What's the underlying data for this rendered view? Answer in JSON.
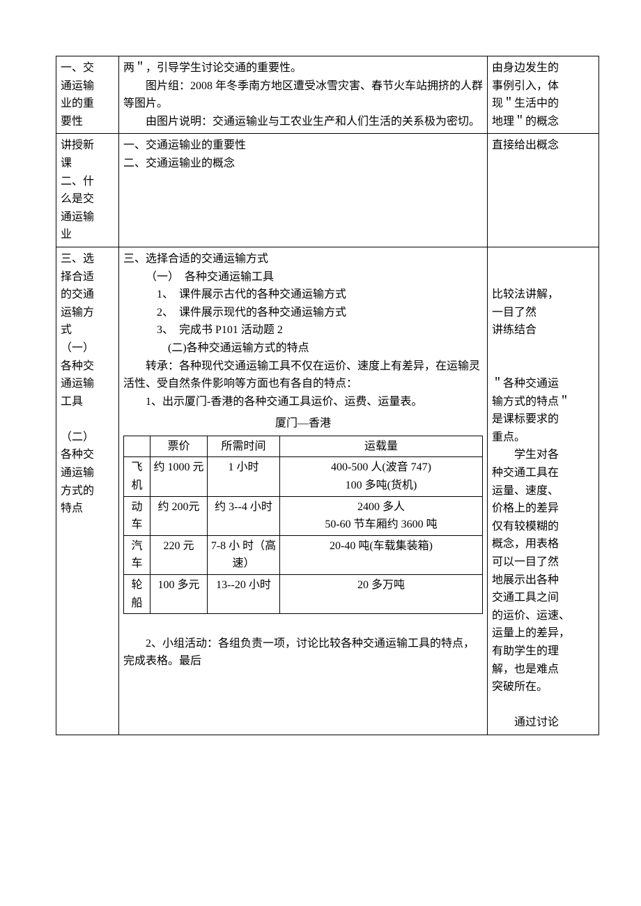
{
  "rows": [
    {
      "left": [
        "一、交",
        "通运输",
        "业的重",
        "要性"
      ],
      "mid": [
        {
          "cls": "",
          "text": "两＂，引导学生讨论交通的重要性。"
        },
        {
          "cls": "indent1",
          "text": "图片组：2008 年冬季南方地区遭受冰雪灾害、春节火车站拥挤的人群等图片。"
        },
        {
          "cls": "indent1",
          "text": "由图片说明：交通运输业与工农业生产和人们生活的关系极为密切。"
        }
      ],
      "right": [
        "",
        "由身边发生的",
        "事例引入，体",
        "现＂生活中的",
        "地理＂的概念"
      ]
    },
    {
      "left": [
        "讲授新",
        "课",
        "二、什",
        "么是交",
        "通运输",
        "业"
      ],
      "mid": [
        {
          "cls": "",
          "text": "一、交通运输业的重要性"
        },
        {
          "cls": "",
          "text": "二、交通运输业的概念"
        }
      ],
      "right": [
        "",
        "直接给出概念"
      ]
    }
  ],
  "row3": {
    "left": [
      "三、选",
      "择合适",
      "的交通",
      "运输方",
      "式",
      "（一）",
      "各种交",
      "通运输",
      "工具",
      "",
      "（二）",
      "各种交",
      "通运输",
      "方式的",
      "特点"
    ],
    "mid_top": [
      {
        "cls": "",
        "text": "三、选择合适的交通运输方式"
      },
      {
        "cls": "indent1",
        "text": "（一）　各种交通运输工具"
      },
      {
        "cls": "indent2",
        "text": "1、　课件展示古代的各种交通运输方式"
      },
      {
        "cls": "indent2",
        "text": "2、　课件展示现代的各种交通运输方式"
      },
      {
        "cls": "indent2",
        "text": "3、　完成书 P101 活动题 2"
      },
      {
        "cls": "indent3",
        "text": "(二)各种交通运输方式的特点"
      },
      {
        "cls": "indent1",
        "text": "转承：各种现代交通运输工具不仅在运价、速度上有差异，在运输灵活性、受自然条件影响等方面也有各自的特点："
      },
      {
        "cls": "indent1",
        "text": "1、出示厦门-香港的各种交通工具运价、运费、运量表。"
      }
    ],
    "inner_title": "厦门—香港",
    "inner_headers": [
      "",
      "票价",
      "所需时间",
      "运载量"
    ],
    "inner_rows": [
      {
        "mode": "飞机",
        "price": "约 1000 元",
        "time": "1 小时",
        "cap": "400-500 人(波音 747)\n100 多吨(货机)"
      },
      {
        "mode": "动车",
        "price": "约 200元",
        "time": "约 3--4 小时",
        "cap": "2400 多人\n50-60 节车厢约 3600 吨"
      },
      {
        "mode": "汽车",
        "price": "220 元",
        "time": "7-8 小 时（高速）",
        "cap": "20-40 吨(车载集装箱)"
      },
      {
        "mode": "轮船",
        "price": "100 多元",
        "time": "13--20 小时",
        "cap": "20 多万吨"
      }
    ],
    "mid_bottom": [
      {
        "cls": "indent1",
        "text": "2、小组活动：各组负责一项，讨论比较各种交通运输工具的特点，完成表格。最后"
      }
    ],
    "right": [
      "",
      "",
      "比较法讲解，",
      "一目了然",
      "讲练结合",
      "",
      "",
      "＂各种交通运",
      "输方式的特点＂",
      "是课标要求的",
      "重点。",
      "　　学生对各",
      "种交通工具在",
      "运量、速度、",
      "价格上的差异",
      "仅有较模糊的",
      "概念，用表格",
      "可以一目了然",
      "地展示出各种",
      "交通工具之间",
      "的运价、运速、",
      "运量上的差异，",
      "有助学生的理",
      "解，也是难点",
      "突破所在。",
      "",
      "　　通过讨论"
    ]
  }
}
